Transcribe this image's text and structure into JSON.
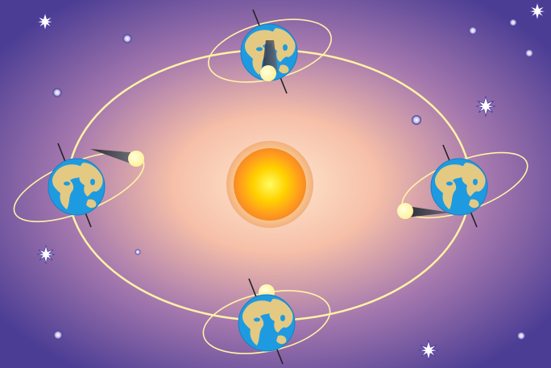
{
  "diagram": {
    "icons": {
      "sun": "sun-icon",
      "earth": "earth-icon",
      "moon": "moon-icon",
      "star": "star-icon"
    },
    "colors": {
      "space_edge": "#4b3d94",
      "space_mid": "#9a6aa8",
      "glow_inner": "#ffe4c8",
      "sun_core": "#ffe600",
      "sun_outer": "#ff9a1e",
      "orbit": "#fff3a6",
      "ocean": "#1e9be0",
      "land": "#e4c983",
      "moon": "#fff7b0",
      "shadow": "#3c3c46"
    },
    "earth_positions": [
      "top",
      "left",
      "right",
      "bottom"
    ]
  }
}
